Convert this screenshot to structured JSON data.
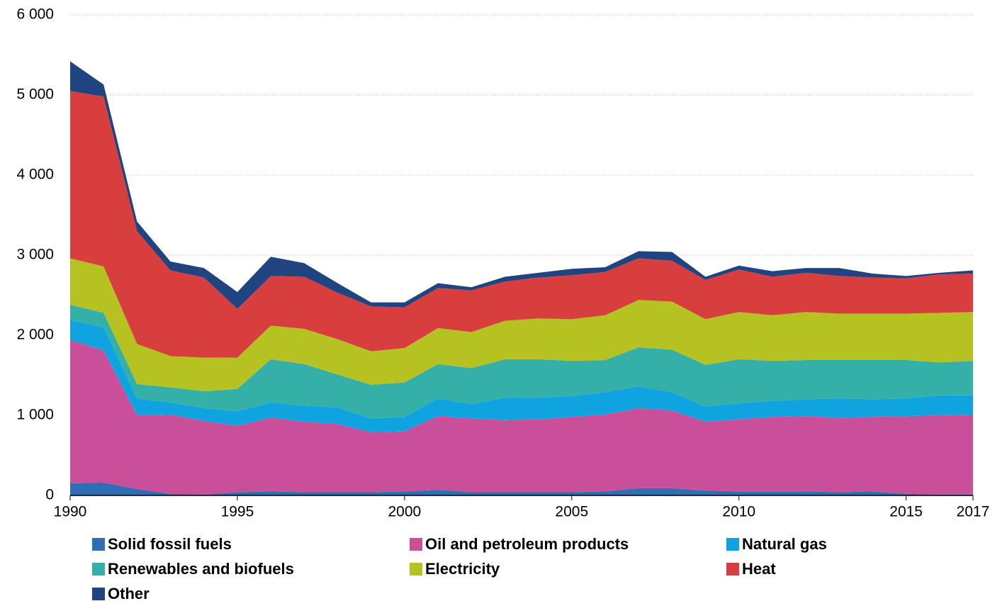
{
  "chart_data": {
    "type": "stacked_area",
    "x": [
      1990,
      1991,
      1992,
      1993,
      1994,
      1995,
      1996,
      1997,
      1998,
      1999,
      2000,
      2001,
      2002,
      2003,
      2004,
      2005,
      2006,
      2007,
      2008,
      2009,
      2010,
      2011,
      2012,
      2013,
      2014,
      2015,
      2016,
      2017
    ],
    "series": [
      {
        "name": "Solid fossil fuels",
        "color": "#2f6db5",
        "values": [
          150,
          160,
          80,
          20,
          10,
          40,
          50,
          40,
          40,
          40,
          50,
          70,
          40,
          40,
          40,
          40,
          50,
          90,
          90,
          60,
          50,
          50,
          50,
          40,
          50,
          20,
          10,
          10
        ]
      },
      {
        "name": "Oil and petroleum products",
        "color": "#c94f9a",
        "values": [
          1790,
          1650,
          920,
          990,
          920,
          830,
          920,
          880,
          850,
          750,
          750,
          920,
          920,
          900,
          910,
          940,
          960,
          1000,
          970,
          860,
          900,
          930,
          940,
          930,
          930,
          970,
          990,
          1000
        ]
      },
      {
        "name": "Natural gas",
        "color": "#0fa4e0",
        "values": [
          250,
          290,
          210,
          150,
          160,
          180,
          190,
          200,
          210,
          170,
          180,
          220,
          180,
          280,
          270,
          260,
          280,
          270,
          230,
          190,
          200,
          200,
          210,
          240,
          220,
          220,
          250,
          240
        ]
      },
      {
        "name": "Renewables and biofuels",
        "color": "#34b0a8",
        "values": [
          190,
          180,
          180,
          190,
          210,
          280,
          540,
          520,
          410,
          420,
          430,
          430,
          450,
          480,
          480,
          440,
          400,
          490,
          530,
          520,
          550,
          500,
          490,
          480,
          490,
          480,
          410,
          430
        ]
      },
      {
        "name": "Electricity",
        "color": "#b5c221",
        "values": [
          580,
          580,
          500,
          390,
          420,
          390,
          420,
          440,
          440,
          420,
          430,
          450,
          450,
          480,
          510,
          520,
          560,
          590,
          600,
          570,
          590,
          570,
          600,
          580,
          580,
          580,
          620,
          610
        ]
      },
      {
        "name": "Heat",
        "color": "#d93e3f",
        "values": [
          2090,
          2120,
          1410,
          1070,
          1000,
          610,
          620,
          650,
          580,
          560,
          510,
          500,
          520,
          490,
          510,
          550,
          540,
          520,
          510,
          490,
          530,
          480,
          490,
          470,
          450,
          440,
          480,
          480
        ]
      },
      {
        "name": "Other",
        "color": "#1f4480",
        "values": [
          370,
          150,
          120,
          110,
          120,
          210,
          240,
          170,
          120,
          50,
          60,
          60,
          40,
          60,
          60,
          80,
          60,
          90,
          110,
          40,
          50,
          70,
          60,
          100,
          50,
          30,
          20,
          40
        ]
      }
    ],
    "xlim": [
      1990,
      2017
    ],
    "xticks": [
      1990,
      1995,
      2000,
      2005,
      2010,
      2015,
      2017
    ],
    "ylim": [
      0,
      6000
    ],
    "yticks": [
      0,
      {
        "value": 1000,
        "label": "1 000"
      },
      {
        "value": 2000,
        "label": "2 000"
      },
      {
        "value": 3000,
        "label": "3 000"
      },
      {
        "value": 4000,
        "label": "4 000"
      },
      {
        "value": 5000,
        "label": "5 000"
      },
      {
        "value": 6000,
        "label": "6 000"
      }
    ],
    "grid": true,
    "legend": "bottom"
  }
}
